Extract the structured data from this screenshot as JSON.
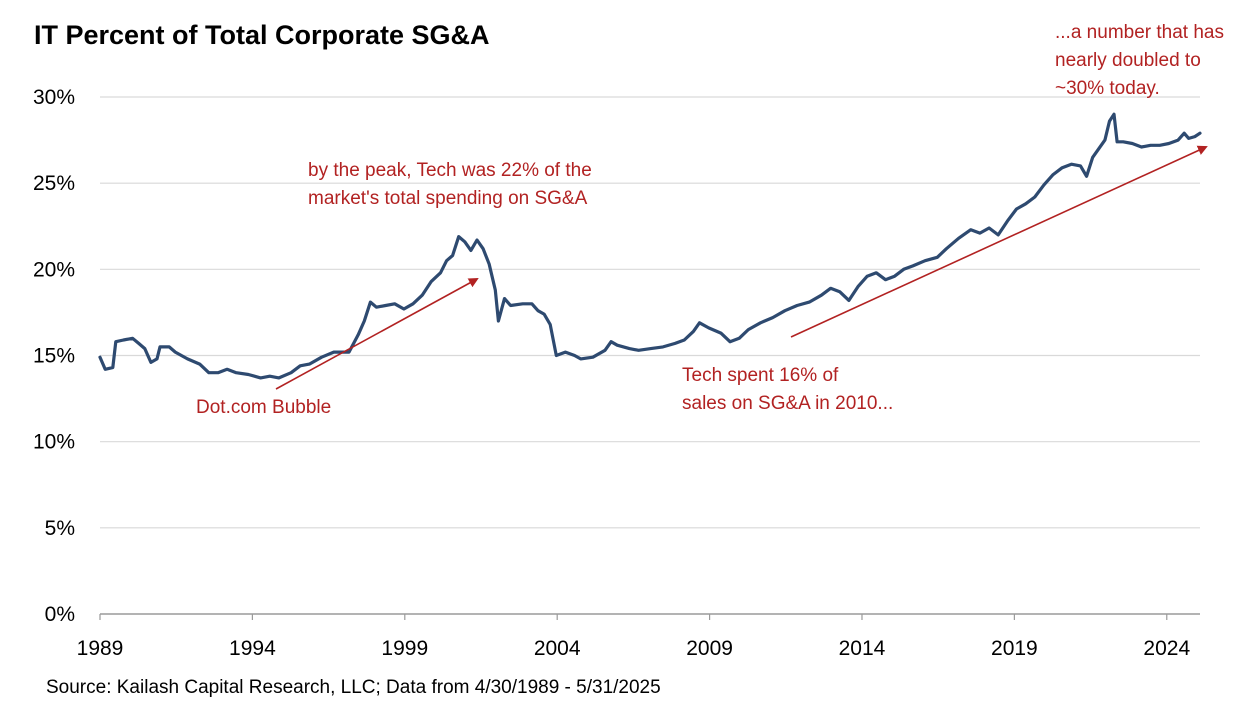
{
  "chart_data": {
    "type": "line",
    "title": "IT Percent of Total Corporate SG&A",
    "xlabel": "",
    "ylabel": "",
    "xlim": [
      1989.33,
      2025.42
    ],
    "ylim": [
      0,
      30
    ],
    "y_ticks": [
      "0%",
      "5%",
      "10%",
      "15%",
      "20%",
      "25%",
      "30%"
    ],
    "y_tick_values": [
      0,
      5,
      10,
      15,
      20,
      25,
      30
    ],
    "x_ticks": [
      "1989",
      "1994",
      "1999",
      "2004",
      "2009",
      "2014",
      "2019",
      "2024"
    ],
    "x_tick_values": [
      1989.33,
      1994.33,
      1999.33,
      2004.33,
      2009.33,
      2014.33,
      2019.33,
      2024.33
    ],
    "grid": "horizontal",
    "series": [
      {
        "color": "#2e4a70",
        "points": [
          [
            1989.33,
            14.9
          ],
          [
            1989.5,
            14.2
          ],
          [
            1989.75,
            14.3
          ],
          [
            1989.85,
            15.8
          ],
          [
            1990.1,
            15.9
          ],
          [
            1990.4,
            16.0
          ],
          [
            1990.6,
            15.7
          ],
          [
            1990.8,
            15.4
          ],
          [
            1991.0,
            14.6
          ],
          [
            1991.2,
            14.8
          ],
          [
            1991.3,
            15.5
          ],
          [
            1991.6,
            15.5
          ],
          [
            1991.8,
            15.2
          ],
          [
            1992.2,
            14.8
          ],
          [
            1992.6,
            14.5
          ],
          [
            1992.9,
            14.0
          ],
          [
            1993.2,
            14.0
          ],
          [
            1993.5,
            14.2
          ],
          [
            1993.8,
            14.0
          ],
          [
            1994.2,
            13.9
          ],
          [
            1994.6,
            13.7
          ],
          [
            1994.9,
            13.8
          ],
          [
            1995.2,
            13.7
          ],
          [
            1995.6,
            14.0
          ],
          [
            1995.9,
            14.4
          ],
          [
            1996.2,
            14.5
          ],
          [
            1996.6,
            14.9
          ],
          [
            1997.0,
            15.2
          ],
          [
            1997.5,
            15.2
          ],
          [
            1997.8,
            16.2
          ],
          [
            1998.0,
            17.0
          ],
          [
            1998.2,
            18.1
          ],
          [
            1998.4,
            17.8
          ],
          [
            1998.7,
            17.9
          ],
          [
            1999.0,
            18.0
          ],
          [
            1999.3,
            17.7
          ],
          [
            1999.6,
            18.0
          ],
          [
            1999.9,
            18.5
          ],
          [
            2000.2,
            19.3
          ],
          [
            2000.5,
            19.8
          ],
          [
            2000.7,
            20.5
          ],
          [
            2000.9,
            20.8
          ],
          [
            2001.1,
            21.9
          ],
          [
            2001.3,
            21.6
          ],
          [
            2001.5,
            21.1
          ],
          [
            2001.7,
            21.7
          ],
          [
            2001.9,
            21.2
          ],
          [
            2002.1,
            20.3
          ],
          [
            2002.3,
            18.8
          ],
          [
            2002.4,
            17.0
          ],
          [
            2002.6,
            18.3
          ],
          [
            2002.8,
            17.9
          ],
          [
            2003.2,
            18.0
          ],
          [
            2003.5,
            18.0
          ],
          [
            2003.7,
            17.6
          ],
          [
            2003.9,
            17.4
          ],
          [
            2004.1,
            16.8
          ],
          [
            2004.3,
            15.0
          ],
          [
            2004.6,
            15.2
          ],
          [
            2004.9,
            15.0
          ],
          [
            2005.1,
            14.8
          ],
          [
            2005.5,
            14.9
          ],
          [
            2005.9,
            15.3
          ],
          [
            2006.1,
            15.8
          ],
          [
            2006.3,
            15.6
          ],
          [
            2006.7,
            15.4
          ],
          [
            2007.0,
            15.3
          ],
          [
            2007.4,
            15.4
          ],
          [
            2007.8,
            15.5
          ],
          [
            2008.2,
            15.7
          ],
          [
            2008.5,
            15.9
          ],
          [
            2008.8,
            16.4
          ],
          [
            2009.0,
            16.9
          ],
          [
            2009.3,
            16.6
          ],
          [
            2009.7,
            16.3
          ],
          [
            2010.0,
            15.8
          ],
          [
            2010.3,
            16.0
          ],
          [
            2010.6,
            16.5
          ],
          [
            2011.0,
            16.9
          ],
          [
            2011.4,
            17.2
          ],
          [
            2011.8,
            17.6
          ],
          [
            2012.2,
            17.9
          ],
          [
            2012.6,
            18.1
          ],
          [
            2013.0,
            18.5
          ],
          [
            2013.3,
            18.9
          ],
          [
            2013.6,
            18.7
          ],
          [
            2013.9,
            18.2
          ],
          [
            2014.2,
            19.0
          ],
          [
            2014.5,
            19.6
          ],
          [
            2014.8,
            19.8
          ],
          [
            2015.1,
            19.4
          ],
          [
            2015.4,
            19.6
          ],
          [
            2015.7,
            20.0
          ],
          [
            2016.0,
            20.2
          ],
          [
            2016.4,
            20.5
          ],
          [
            2016.8,
            20.7
          ],
          [
            2017.1,
            21.2
          ],
          [
            2017.5,
            21.8
          ],
          [
            2017.9,
            22.3
          ],
          [
            2018.2,
            22.1
          ],
          [
            2018.5,
            22.4
          ],
          [
            2018.8,
            22.0
          ],
          [
            2019.1,
            22.8
          ],
          [
            2019.4,
            23.5
          ],
          [
            2019.7,
            23.8
          ],
          [
            2020.0,
            24.2
          ],
          [
            2020.3,
            24.9
          ],
          [
            2020.6,
            25.5
          ],
          [
            2020.9,
            25.9
          ],
          [
            2021.2,
            26.1
          ],
          [
            2021.5,
            26.0
          ],
          [
            2021.7,
            25.4
          ],
          [
            2021.9,
            26.5
          ],
          [
            2022.1,
            27.0
          ],
          [
            2022.3,
            27.5
          ],
          [
            2022.45,
            28.6
          ],
          [
            2022.6,
            29.0
          ],
          [
            2022.7,
            27.4
          ],
          [
            2022.9,
            27.4
          ],
          [
            2023.2,
            27.3
          ],
          [
            2023.5,
            27.1
          ],
          [
            2023.8,
            27.2
          ],
          [
            2024.1,
            27.2
          ],
          [
            2024.4,
            27.3
          ],
          [
            2024.7,
            27.5
          ],
          [
            2024.9,
            27.9
          ],
          [
            2025.05,
            27.6
          ],
          [
            2025.25,
            27.7
          ],
          [
            2025.42,
            27.9
          ]
        ]
      }
    ],
    "annotations": [
      {
        "lines": [
          "by the peak, Tech was 22% of the",
          "market's total spending on SG&A"
        ]
      },
      {
        "lines": [
          "Dot.com Bubble"
        ]
      },
      {
        "lines": [
          "Tech spent 16% of",
          "sales on SG&A in 2010..."
        ]
      },
      {
        "lines": [
          "...a number that has",
          "nearly doubled to",
          "~30% today."
        ]
      }
    ],
    "annotation_color": "#b22222"
  },
  "source": "Source: Kailash Capital Research, LLC; Data from 4/30/1989 - 5/31/2025"
}
